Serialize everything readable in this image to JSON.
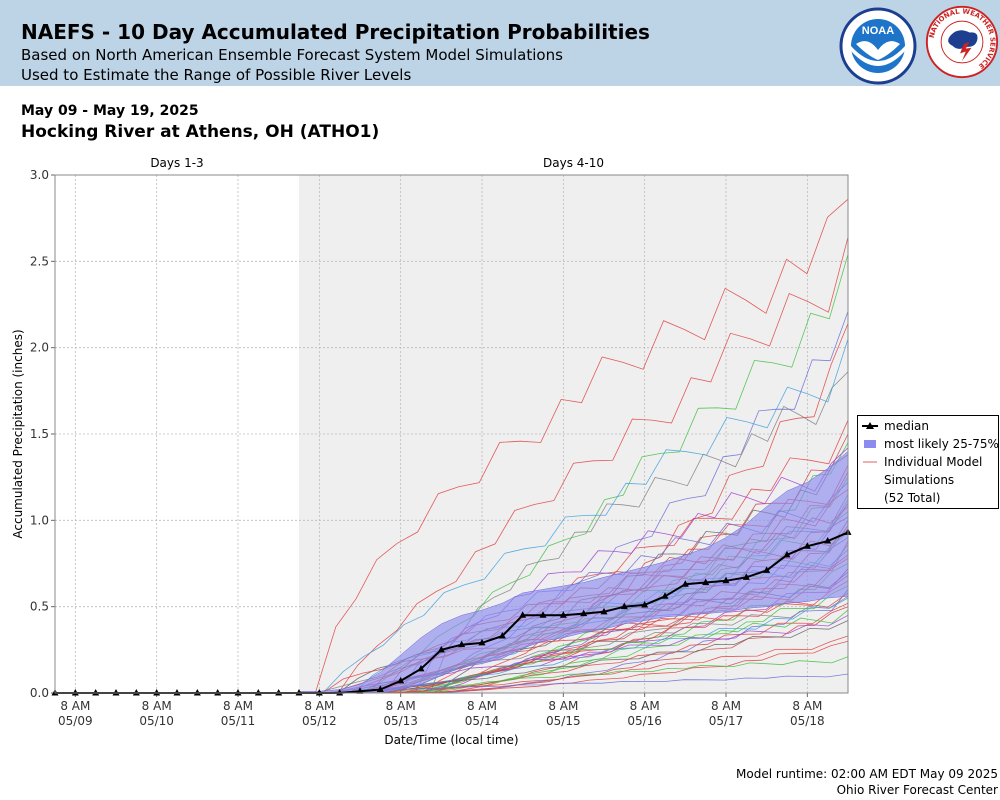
{
  "header": {
    "title": "NAEFS - 10 Day Accumulated Precipitation Probabilities",
    "subtitle1": "Based on North American Ensemble Forecast System Model Simulations",
    "subtitle2": "Used to Estimate the Range of Possible River Levels",
    "noaa_logo_text": "NOAA",
    "nws_logo_text": "NATIONAL WEATHER SERVICE"
  },
  "date_range": "May 09 - May 19, 2025",
  "location": "Hocking River at Athens, OH (ATHO1)",
  "footer": {
    "runtime": "Model runtime: 02:00 AM EDT May 09 2025",
    "center": "Ohio River Forecast Center"
  },
  "colors": {
    "banner": "#bdd3e6",
    "band_fill": "#8c8cf0",
    "median": "#000000",
    "plot_shade": "#efefef",
    "grid": "#bbbbbb"
  },
  "chart_data": {
    "type": "line",
    "title": "",
    "xlabel": "Date/Time (local time)",
    "ylabel": "Accumulated Precipitation (inches)",
    "ylim": [
      0,
      3.0
    ],
    "y_ticks": [
      "0.0",
      "0.5",
      "1.0",
      "1.5",
      "2.0",
      "2.5",
      "3.0"
    ],
    "x_ticks": [
      {
        "time": "8 AM",
        "date": "05/09",
        "day": 0.25
      },
      {
        "time": "8 AM",
        "date": "05/10",
        "day": 1.25
      },
      {
        "time": "8 AM",
        "date": "05/11",
        "day": 2.25
      },
      {
        "time": "8 AM",
        "date": "05/12",
        "day": 3.25
      },
      {
        "time": "8 AM",
        "date": "05/13",
        "day": 4.25
      },
      {
        "time": "8 AM",
        "date": "05/14",
        "day": 5.25
      },
      {
        "time": "8 AM",
        "date": "05/15",
        "day": 6.25
      },
      {
        "time": "8 AM",
        "date": "05/16",
        "day": 7.25
      },
      {
        "time": "8 AM",
        "date": "05/17",
        "day": 8.25
      },
      {
        "time": "8 AM",
        "date": "05/18",
        "day": 9.25
      }
    ],
    "xlim_days": [
      0,
      9.75
    ],
    "periods": [
      {
        "label": "Days 1-3",
        "start_day": 0,
        "end_day": 3.0
      },
      {
        "label": "Days 4-10",
        "start_day": 3.0,
        "end_day": 9.75
      }
    ],
    "grid": true,
    "legend_position": "right",
    "legend": {
      "median": "median",
      "band": "most likely 25-75%",
      "members_line1": "Individual Model",
      "members_line2": "Simulations",
      "members_line3": "(52 Total)"
    },
    "median_series": {
      "name": "median",
      "x_days": [
        0.0,
        0.25,
        0.5,
        0.75,
        1.0,
        1.25,
        1.5,
        1.75,
        2.0,
        2.25,
        2.5,
        2.75,
        3.0,
        3.25,
        3.5,
        3.75,
        4.0,
        4.25,
        4.5,
        4.75,
        5.0,
        5.25,
        5.5,
        5.75,
        6.0,
        6.25,
        6.5,
        6.75,
        7.0,
        7.25,
        7.5,
        7.75,
        8.0,
        8.25,
        8.5,
        8.75,
        9.0,
        9.25,
        9.5,
        9.75
      ],
      "values": [
        0,
        0,
        0,
        0,
        0,
        0,
        0,
        0,
        0,
        0,
        0,
        0,
        0,
        0,
        0,
        0.01,
        0.02,
        0.07,
        0.14,
        0.25,
        0.28,
        0.29,
        0.33,
        0.45,
        0.45,
        0.45,
        0.46,
        0.47,
        0.5,
        0.51,
        0.56,
        0.63,
        0.64,
        0.65,
        0.67,
        0.71,
        0.8,
        0.85,
        0.88,
        0.93
      ]
    },
    "band_25_75": {
      "name": "most likely 25-75%",
      "x_days": [
        3.0,
        3.25,
        3.5,
        3.75,
        4.0,
        4.25,
        4.5,
        4.75,
        5.0,
        5.25,
        5.5,
        5.75,
        6.0,
        6.25,
        6.5,
        6.75,
        7.0,
        7.25,
        7.5,
        7.75,
        8.0,
        8.25,
        8.5,
        8.75,
        9.0,
        9.25,
        9.5,
        9.75
      ],
      "lower": [
        0,
        0,
        0,
        0,
        0,
        0.02,
        0.05,
        0.1,
        0.15,
        0.17,
        0.2,
        0.26,
        0.3,
        0.32,
        0.35,
        0.37,
        0.4,
        0.42,
        0.44,
        0.45,
        0.46,
        0.47,
        0.49,
        0.5,
        0.52,
        0.53,
        0.55,
        0.56
      ],
      "upper": [
        0.01,
        0.01,
        0.02,
        0.05,
        0.12,
        0.22,
        0.32,
        0.4,
        0.45,
        0.48,
        0.52,
        0.58,
        0.6,
        0.62,
        0.64,
        0.67,
        0.7,
        0.73,
        0.76,
        0.8,
        0.84,
        0.9,
        0.98,
        1.08,
        1.17,
        1.22,
        1.3,
        1.4
      ]
    },
    "member_summary": {
      "count": 52,
      "max_end_value": 2.86,
      "min_end_value": 0.11
    },
    "member_end_values": [
      2.86,
      2.64,
      2.54,
      2.21,
      2.14,
      1.86,
      2.05,
      1.58,
      1.5,
      1.45,
      1.42,
      1.38,
      1.32,
      1.28,
      1.25,
      1.22,
      1.18,
      1.15,
      1.12,
      1.1,
      1.08,
      1.05,
      1.02,
      1.0,
      0.97,
      0.95,
      0.93,
      0.9,
      0.88,
      0.86,
      0.83,
      0.8,
      0.78,
      0.75,
      0.72,
      0.7,
      0.68,
      0.65,
      0.62,
      0.6,
      0.58,
      0.56,
      0.55,
      0.52,
      0.5,
      0.48,
      0.45,
      0.42,
      0.33,
      0.3,
      0.21,
      0.11
    ]
  }
}
